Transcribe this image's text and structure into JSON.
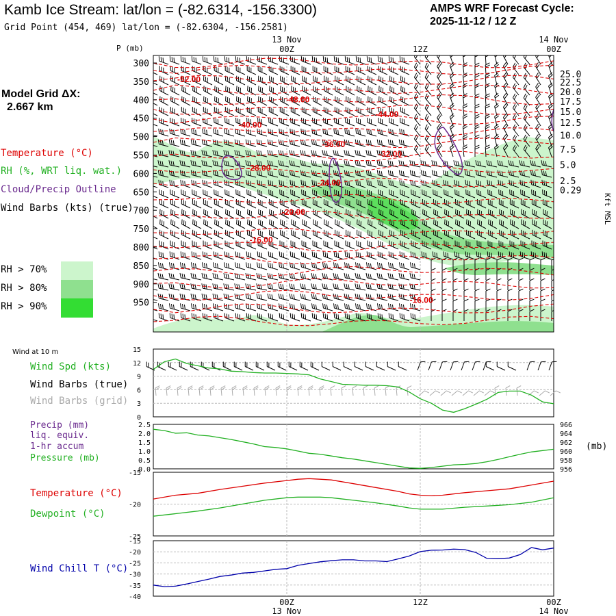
{
  "header": {
    "title": "Kamb Ice Stream:  lat/lon = (-82.6314, -156.3300)",
    "subtitle": "Grid Point (454, 469) lat/lon = (-82.6304, -156.2581)",
    "cycle_line1": "AMPS WRF Forecast Cycle:",
    "cycle_line2": "2025-11-12 / 12  Z"
  },
  "model_grid": {
    "label": "Model Grid ΔX:",
    "value": "2.667 km"
  },
  "colors": {
    "temperature": "#dd0000",
    "rh": "#22b022",
    "cloud": "#6a2a8e",
    "wind": "#000000",
    "grid_barb": "#aaaaaa",
    "wind_chill": "#0000aa",
    "precip": "#6a2a8e",
    "rh70": "#ccf5cc",
    "rh80": "#8fe08f",
    "rh90": "#33dd33"
  },
  "time_axis": {
    "top_labels": [
      {
        "date": "13 Nov",
        "hour": "00Z"
      },
      {
        "date": "",
        "hour": "12Z"
      },
      {
        "date": "14 Nov",
        "hour": "00Z"
      }
    ],
    "bottom_labels": [
      {
        "hour": "00Z",
        "date": "13 Nov"
      },
      {
        "hour": "12Z",
        "date": ""
      },
      {
        "hour": "00Z",
        "date": "14 Nov"
      }
    ]
  },
  "cross_section": {
    "left_legend": {
      "temperature": "Temperature (°C)",
      "rh": "RH (%, WRT liq. wat.)",
      "cloud": "Cloud/Precip Outline",
      "wind": "Wind Barbs (kts) (true)"
    },
    "rh_legend": [
      "RH > 70%",
      "RH > 80%",
      "RH > 90%"
    ]
  },
  "panels": {
    "wind10m": {
      "title": "Wind at 10 m",
      "labels": [
        "Wind Spd (kts)",
        "Wind Barbs (true)",
        "Wind Barbs (grid)"
      ]
    },
    "precip": {
      "labels": [
        "Precip (mm)",
        "liq. equiv.",
        "1-hr accum",
        "Pressure (mb)"
      ],
      "right_unit": "(mb)"
    },
    "temp": {
      "labels": [
        "Temperature (°C)",
        "Dewpoint (°C)"
      ]
    },
    "chill": {
      "labels": [
        "Wind Chill T (°C)"
      ]
    }
  },
  "chart_data": [
    {
      "type": "contour",
      "name": "vertical cross-section",
      "x_hours": [
        -12,
        24
      ],
      "ylabel_left": "P (mb)",
      "ylabel_right": "Kft MSL",
      "pressure_ticks": [
        "300",
        "350",
        "400",
        "450",
        "500",
        "550",
        "600",
        "650",
        "700",
        "750",
        "800",
        "850",
        "900",
        "950"
      ],
      "height_ticks": [
        {
          "label": "25.0",
          "p": 330
        },
        {
          "label": "22.5",
          "p": 352
        },
        {
          "label": "20.0",
          "p": 378
        },
        {
          "label": "17.5",
          "p": 404
        },
        {
          "label": "15.0",
          "p": 432
        },
        {
          "label": "12.5",
          "p": 462
        },
        {
          "label": "10.0",
          "p": 496
        },
        {
          "label": "7.5",
          "p": 534
        },
        {
          "label": "5.0",
          "p": 576
        },
        {
          "label": "2.5",
          "p": 620
        },
        {
          "label": "0.29",
          "p": 645
        }
      ],
      "temperature_labels": [
        {
          "text": "-52.00",
          "hr": -8.8,
          "p": 343
        },
        {
          "text": "-48.00",
          "hr": 1.0,
          "p": 398
        },
        {
          "text": "-44.00",
          "hr": 9.0,
          "p": 438
        },
        {
          "text": "-40.00",
          "hr": -3.3,
          "p": 466
        },
        {
          "text": "-36.00",
          "hr": 4.2,
          "p": 519
        },
        {
          "text": "-32.00",
          "hr": 9.3,
          "p": 545
        },
        {
          "text": "-28.00",
          "hr": -2.5,
          "p": 583
        },
        {
          "text": "-24.00",
          "hr": 3.8,
          "p": 623
        },
        {
          "text": "-20.00",
          "hr": 0.6,
          "p": 703
        },
        {
          "text": "-16.00",
          "hr": -2.3,
          "p": 779
        },
        {
          "text": "-16.00",
          "hr": 12.1,
          "p": 942
        }
      ]
    },
    {
      "type": "line",
      "name": "Wind Spd (kts)",
      "x_hours": [
        -12,
        -11,
        -10,
        -9,
        -8,
        -7,
        -6,
        -5,
        -4,
        -3,
        -2,
        -1,
        0,
        1,
        2,
        3,
        4,
        5,
        6,
        7,
        8,
        9,
        10,
        11,
        12,
        13,
        14,
        15,
        16,
        17,
        18,
        19,
        20,
        21,
        22,
        23,
        24
      ],
      "values": [
        10.5,
        12.2,
        12.8,
        11.8,
        11.3,
        10.8,
        10.6,
        10.1,
        10.0,
        9.8,
        9.7,
        9.7,
        9.6,
        9.5,
        9.3,
        8.4,
        7.8,
        7.2,
        7.1,
        7.0,
        7.0,
        6.9,
        6.6,
        5.5,
        4.0,
        3.0,
        1.5,
        1.0,
        1.8,
        2.8,
        3.9,
        5.4,
        5.7,
        5.7,
        4.8,
        3.3,
        2.9
      ],
      "ylim": [
        0,
        15
      ],
      "yticks": [
        "15",
        "12",
        "9",
        "6",
        "3",
        "0"
      ]
    },
    {
      "type": "line",
      "name": "Pressure (mb)",
      "x_hours": [
        -12,
        -11,
        -10,
        -9,
        -8,
        -7,
        -6,
        -5,
        -4,
        -3,
        -2,
        -1,
        0,
        1,
        2,
        3,
        4,
        5,
        6,
        7,
        8,
        9,
        10,
        11,
        12,
        13,
        14,
        15,
        16,
        17,
        18,
        19,
        20,
        21,
        22,
        23,
        24
      ],
      "values": [
        964.9,
        964.6,
        964.0,
        964.1,
        963.6,
        963.4,
        963.0,
        962.6,
        962.1,
        961.6,
        961.0,
        960.8,
        960.5,
        960.0,
        959.5,
        959.3,
        958.9,
        958.5,
        958.2,
        957.8,
        957.4,
        957.0,
        956.6,
        956.2,
        956.1,
        956.3,
        956.6,
        956.9,
        957.0,
        957.2,
        957.6,
        958.1,
        958.7,
        959.3,
        959.8,
        960.1,
        960.4
      ],
      "ylim": [
        956,
        966
      ],
      "yticks_left": [
        "2.5",
        "2.0",
        "1.5",
        "1.0",
        "0.5",
        "0.0"
      ],
      "yticks_right": [
        "966",
        "964",
        "962",
        "960",
        "958",
        "956"
      ],
      "precip_values": "none visible"
    },
    {
      "type": "line",
      "name": "Temperature / Dewpoint (°C)",
      "x_hours": [
        -12,
        -10,
        -8,
        -6,
        -4,
        -2,
        0,
        1,
        2,
        3,
        4,
        6,
        8,
        10,
        11,
        12,
        13,
        14,
        16,
        18,
        20,
        22,
        24
      ],
      "series": [
        {
          "name": "Temperature",
          "values": [
            -19.2,
            -18.6,
            -18.3,
            -17.7,
            -17.2,
            -16.7,
            -16.3,
            -16.1,
            -16.0,
            -16.1,
            -16.2,
            -16.8,
            -17.4,
            -18.0,
            -18.4,
            -18.6,
            -18.7,
            -18.6,
            -18.2,
            -17.9,
            -17.6,
            -17.0,
            -16.4
          ]
        },
        {
          "name": "Dewpoint",
          "values": [
            -21.9,
            -21.5,
            -21.1,
            -20.6,
            -20.0,
            -19.4,
            -19.0,
            -18.9,
            -18.9,
            -18.9,
            -19.0,
            -19.4,
            -19.8,
            -20.3,
            -20.6,
            -20.8,
            -20.8,
            -20.8,
            -20.5,
            -20.3,
            -20.1,
            -19.7,
            -19.0
          ]
        }
      ],
      "ylim": [
        -25,
        -15
      ],
      "yticks": [
        "-15",
        "-20",
        "-25"
      ]
    },
    {
      "type": "line",
      "name": "Wind Chill T (°C)",
      "x_hours": [
        -12,
        -11,
        -10,
        -9,
        -8,
        -7,
        -6,
        -5,
        -4,
        -3,
        -2,
        -1,
        0,
        1,
        2,
        3,
        4,
        5,
        6,
        7,
        8,
        9,
        10,
        11,
        12,
        13,
        14,
        15,
        16,
        17,
        18,
        19,
        20,
        21,
        22,
        23,
        24
      ],
      "values": [
        -35,
        -35.7,
        -35.5,
        -34.5,
        -33.4,
        -32.3,
        -31.1,
        -30.5,
        -29.6,
        -29.3,
        -28.6,
        -27.9,
        -27.6,
        -26.1,
        -25.3,
        -24.5,
        -24.0,
        -23.6,
        -23.6,
        -24.1,
        -24.1,
        -24.4,
        -23.2,
        -21.9,
        -19.9,
        -19.3,
        -19.2,
        -18.8,
        -19.0,
        -20.3,
        -23.0,
        -23.1,
        -22.8,
        -21.2,
        -18.1,
        -19.1,
        -18.3
      ],
      "ylim": [
        -40,
        -15
      ],
      "yticks": [
        "-15",
        "-20",
        "-25",
        "-30",
        "-35",
        "-40"
      ]
    }
  ]
}
